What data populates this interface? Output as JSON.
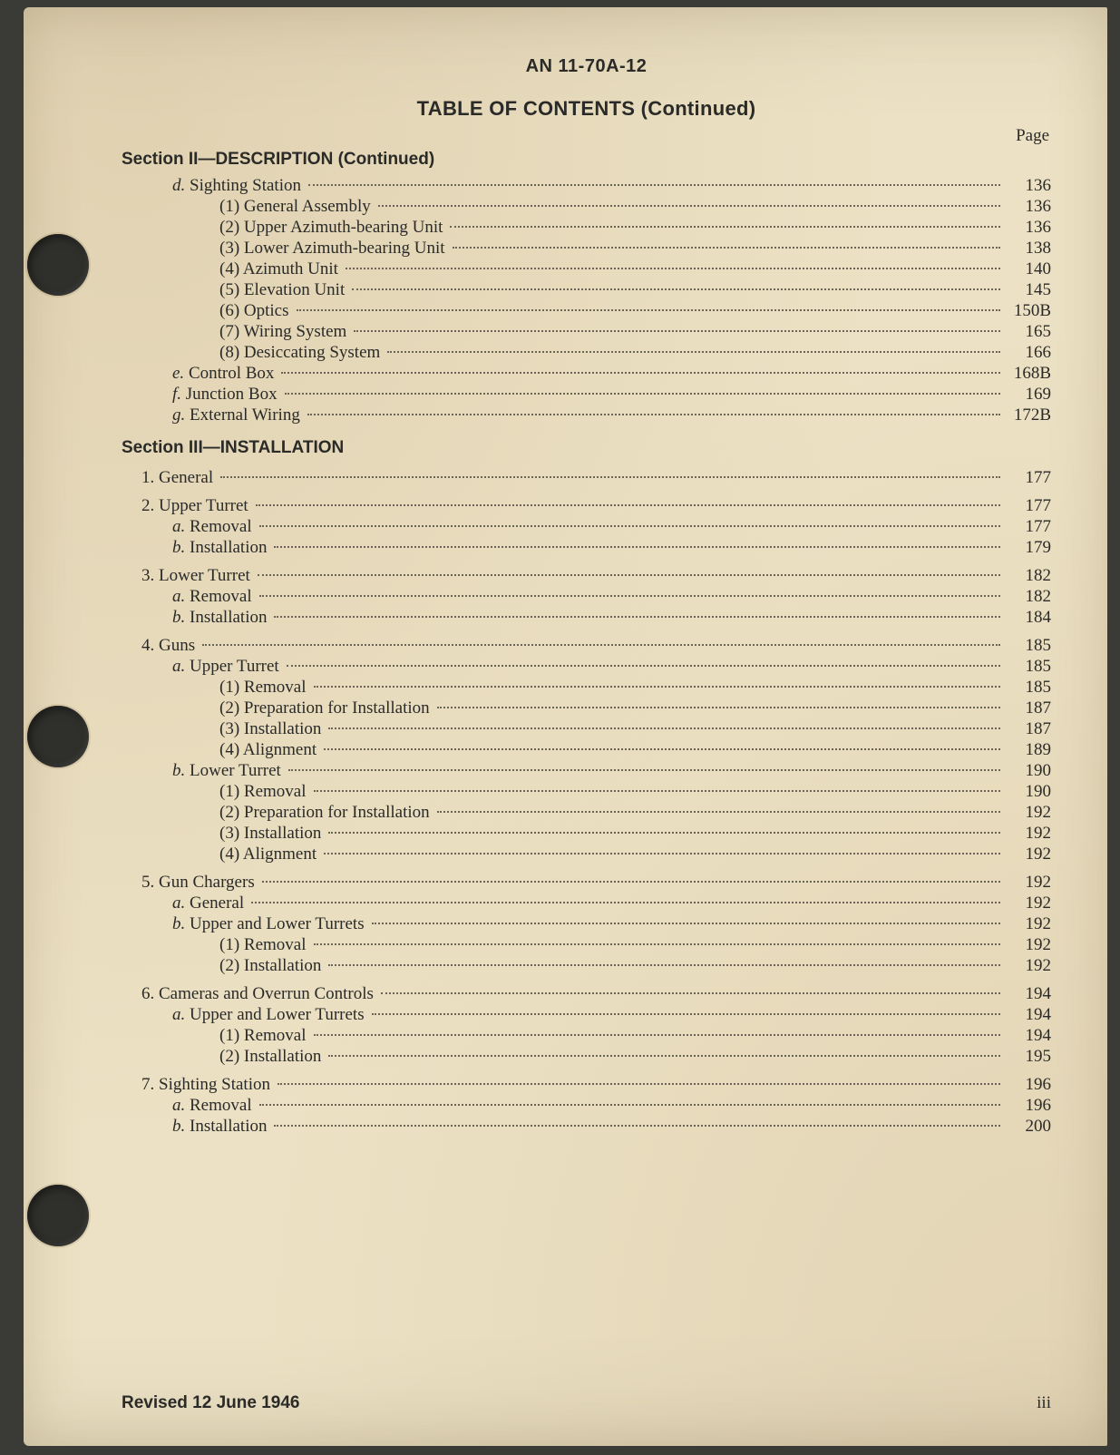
{
  "doc_id": "AN 11-70A-12",
  "title": "TABLE OF CONTENTS (Continued)",
  "page_label": "Page",
  "section2_head": "Section II—DESCRIPTION (Continued)",
  "section3_head": "Section III—INSTALLATION",
  "footer_revised": "Revised 12 June 1946",
  "footer_folio": "iii",
  "sec2": [
    {
      "lvl": 2,
      "marker": "d.",
      "markerItalic": true,
      "label": "Sighting Station",
      "page": "136"
    },
    {
      "lvl": 3,
      "marker": "(1)",
      "label": "General Assembly",
      "page": "136"
    },
    {
      "lvl": 3,
      "marker": "(2)",
      "label": "Upper Azimuth-bearing Unit",
      "page": "136"
    },
    {
      "lvl": 3,
      "marker": "(3)",
      "label": "Lower Azimuth-bearing Unit",
      "page": "138"
    },
    {
      "lvl": 3,
      "marker": "(4)",
      "label": "Azimuth Unit",
      "page": "140"
    },
    {
      "lvl": 3,
      "marker": "(5)",
      "label": "Elevation Unit",
      "page": "145"
    },
    {
      "lvl": 3,
      "marker": "(6)",
      "label": "Optics",
      "page": "150B"
    },
    {
      "lvl": 3,
      "marker": "(7)",
      "label": "Wiring System",
      "page": "165"
    },
    {
      "lvl": 3,
      "marker": "(8)",
      "label": "Desiccating System",
      "page": "166"
    },
    {
      "lvl": 2,
      "marker": "e.",
      "markerItalic": true,
      "label": "Control Box",
      "page": "168B"
    },
    {
      "lvl": 2,
      "marker": "f.",
      "markerItalic": true,
      "label": "Junction Box",
      "page": "169"
    },
    {
      "lvl": 2,
      "marker": "g.",
      "markerItalic": true,
      "label": "External Wiring",
      "page": "172B"
    }
  ],
  "sec3": [
    {
      "lvl": 1,
      "marker": "1.",
      "label": "General",
      "page": "177"
    },
    {
      "lvl": 1,
      "marker": "2.",
      "label": "Upper Turret",
      "page": "177"
    },
    {
      "lvl": 2,
      "marker": "a.",
      "markerItalic": true,
      "label": "Removal",
      "page": "177"
    },
    {
      "lvl": 2,
      "marker": "b.",
      "markerItalic": true,
      "label": "Installation",
      "page": "179"
    },
    {
      "lvl": 1,
      "marker": "3.",
      "label": "Lower Turret",
      "page": "182"
    },
    {
      "lvl": 2,
      "marker": "a.",
      "markerItalic": true,
      "label": "Removal",
      "page": "182"
    },
    {
      "lvl": 2,
      "marker": "b.",
      "markerItalic": true,
      "label": "Installation",
      "page": "184"
    },
    {
      "lvl": 1,
      "marker": "4.",
      "label": "Guns",
      "page": "185"
    },
    {
      "lvl": 2,
      "marker": "a.",
      "markerItalic": true,
      "label": "Upper Turret",
      "page": "185"
    },
    {
      "lvl": 3,
      "marker": "(1)",
      "label": "Removal",
      "page": "185"
    },
    {
      "lvl": 3,
      "marker": "(2)",
      "label": "Preparation for Installation",
      "page": "187"
    },
    {
      "lvl": 3,
      "marker": "(3)",
      "label": "Installation",
      "page": "187"
    },
    {
      "lvl": 3,
      "marker": "(4)",
      "label": "Alignment",
      "page": "189"
    },
    {
      "lvl": 2,
      "marker": "b.",
      "markerItalic": true,
      "label": "Lower Turret",
      "page": "190"
    },
    {
      "lvl": 3,
      "marker": "(1)",
      "label": "Removal",
      "page": "190"
    },
    {
      "lvl": 3,
      "marker": "(2)",
      "label": "Preparation for Installation",
      "page": "192"
    },
    {
      "lvl": 3,
      "marker": "(3)",
      "label": "Installation",
      "page": "192"
    },
    {
      "lvl": 3,
      "marker": "(4)",
      "label": "Alignment",
      "page": "192"
    },
    {
      "lvl": 1,
      "marker": "5.",
      "label": "Gun Chargers",
      "page": "192"
    },
    {
      "lvl": 2,
      "marker": "a.",
      "markerItalic": true,
      "label": "General",
      "page": "192"
    },
    {
      "lvl": 2,
      "marker": "b.",
      "markerItalic": true,
      "label": "Upper and Lower Turrets",
      "page": "192"
    },
    {
      "lvl": 3,
      "marker": "(1)",
      "label": "Removal",
      "page": "192"
    },
    {
      "lvl": 3,
      "marker": "(2)",
      "label": "Installation",
      "page": "192"
    },
    {
      "lvl": 1,
      "marker": "6.",
      "label": "Cameras and Overrun Controls",
      "page": "194"
    },
    {
      "lvl": 2,
      "marker": "a.",
      "markerItalic": true,
      "label": "Upper and Lower Turrets",
      "page": "194"
    },
    {
      "lvl": 3,
      "marker": "(1)",
      "label": "Removal",
      "page": "194"
    },
    {
      "lvl": 3,
      "marker": "(2)",
      "label": "Installation",
      "page": "195"
    },
    {
      "lvl": 1,
      "marker": "7.",
      "label": "Sighting Station",
      "page": "196"
    },
    {
      "lvl": 2,
      "marker": "a.",
      "markerItalic": true,
      "label": "Removal",
      "page": "196"
    },
    {
      "lvl": 2,
      "marker": "b.",
      "markerItalic": true,
      "label": "Installation",
      "page": "200"
    }
  ]
}
